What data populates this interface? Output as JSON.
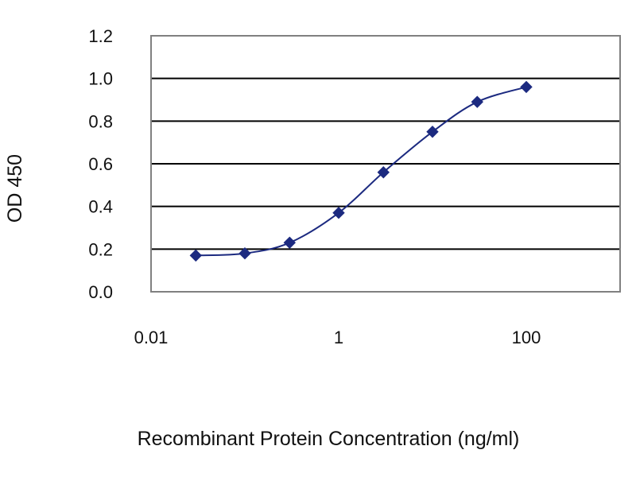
{
  "chart_data": {
    "type": "line",
    "title": "",
    "xlabel": "Recombinant Protein Concentration (ng/ml)",
    "ylabel": "OD 450",
    "x_scale": "log",
    "xlim": [
      0.01,
      1000
    ],
    "ylim": [
      0,
      1.2
    ],
    "x_ticks": [
      {
        "value": 0.01,
        "label": "0.01"
      },
      {
        "value": 1,
        "label": "1"
      },
      {
        "value": 100,
        "label": "100"
      }
    ],
    "y_ticks": [
      {
        "value": 0.0,
        "label": "0.0"
      },
      {
        "value": 0.2,
        "label": "0.2"
      },
      {
        "value": 0.4,
        "label": "0.4"
      },
      {
        "value": 0.6,
        "label": "0.6"
      },
      {
        "value": 0.8,
        "label": "0.8"
      },
      {
        "value": 1.0,
        "label": "1.0"
      },
      {
        "value": 1.2,
        "label": "1.2"
      }
    ],
    "grid": "horizontal",
    "legend": "none",
    "series": [
      {
        "x": [
          0.03,
          0.1,
          0.3,
          1,
          3,
          10,
          30,
          100
        ],
        "y": [
          0.17,
          0.18,
          0.23,
          0.37,
          0.56,
          0.75,
          0.89,
          0.96
        ]
      }
    ],
    "colors": {
      "series": "#1c2a80",
      "grid": "#000000",
      "frame": "#808080"
    }
  }
}
